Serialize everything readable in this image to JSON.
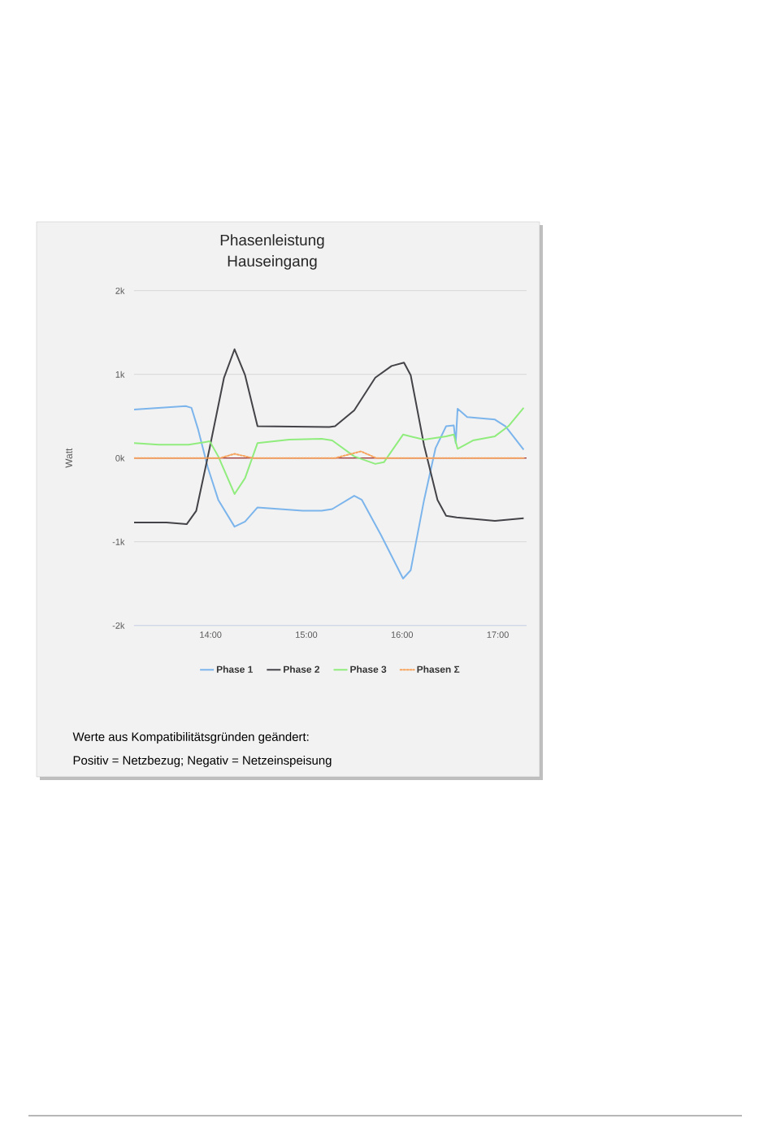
{
  "chart_data": {
    "type": "line",
    "title": "Phasenleistung Hauseingang",
    "ylabel": "Watt",
    "xlim": [
      13.2,
      17.3
    ],
    "ylim": [
      -2000,
      2000
    ],
    "xticks": [
      {
        "value": 14,
        "label": "14:00"
      },
      {
        "value": 15,
        "label": "15:00"
      },
      {
        "value": 16,
        "label": "16:00"
      },
      {
        "value": 17,
        "label": "17:00"
      }
    ],
    "yticks": [
      {
        "value": -2000,
        "label": "-2k"
      },
      {
        "value": -1000,
        "label": "-1k"
      },
      {
        "value": 0,
        "label": "0k"
      },
      {
        "value": 1000,
        "label": "1k"
      },
      {
        "value": 2000,
        "label": "2k"
      }
    ],
    "grid": "y",
    "legend": "bottom",
    "marker": "none",
    "ref_lines": [
      {
        "axis": "y",
        "value": 0,
        "color": "#8b0000"
      }
    ],
    "series": [
      {
        "name": "Phase 1",
        "color": "#7cb5ec",
        "x": [
          13.2,
          13.74,
          13.8,
          13.87,
          13.97,
          14.08,
          14.25,
          14.36,
          14.49,
          14.96,
          15.16,
          15.27,
          15.5,
          15.58,
          15.78,
          16.01,
          16.09,
          16.23,
          16.35,
          16.46,
          16.54,
          16.56,
          16.58,
          16.68,
          16.97,
          17.08,
          17.27
        ],
        "values": [
          580,
          620,
          600,
          340,
          -110,
          -500,
          -820,
          -760,
          -590,
          -630,
          -630,
          -610,
          -450,
          -500,
          -920,
          -1440,
          -1340,
          -500,
          120,
          380,
          390,
          180,
          590,
          490,
          460,
          380,
          100
        ]
      },
      {
        "name": "Phase 2",
        "color": "#434348",
        "x": [
          13.2,
          13.54,
          13.75,
          13.85,
          13.99,
          14.14,
          14.25,
          14.36,
          14.49,
          15.24,
          15.3,
          15.5,
          15.72,
          15.89,
          16.02,
          16.09,
          16.23,
          16.37,
          16.46,
          16.57,
          16.97,
          17.27
        ],
        "values": [
          -770,
          -770,
          -790,
          -630,
          120,
          960,
          1300,
          990,
          380,
          370,
          380,
          570,
          960,
          1100,
          1140,
          990,
          150,
          -500,
          -690,
          -710,
          -750,
          -720
        ]
      },
      {
        "name": "Phase 3",
        "color": "#90ed7d",
        "x": [
          13.2,
          13.46,
          13.77,
          13.99,
          14.08,
          14.25,
          14.36,
          14.49,
          14.82,
          15.16,
          15.27,
          15.5,
          15.72,
          15.81,
          16.01,
          16.23,
          16.46,
          16.54,
          16.58,
          16.74,
          16.97,
          17.11,
          17.27
        ],
        "values": [
          180,
          160,
          160,
          200,
          20,
          -430,
          -240,
          180,
          220,
          230,
          210,
          20,
          -70,
          -50,
          280,
          220,
          260,
          280,
          110,
          210,
          260,
          380,
          600
        ]
      },
      {
        "name": "Phasen Σ",
        "color": "#f7a35c",
        "line_style": "dotted",
        "x": [
          13.2,
          14.1,
          14.25,
          14.44,
          15.3,
          15.57,
          15.73,
          17.27
        ],
        "values": [
          0,
          0,
          50,
          0,
          0,
          80,
          0,
          0
        ]
      }
    ],
    "annotations": [
      "Werte aus Kompatibilitätsgründen geändert:",
      "Positiv = Netzbezug; Negativ = Netzeinspeisung"
    ]
  }
}
